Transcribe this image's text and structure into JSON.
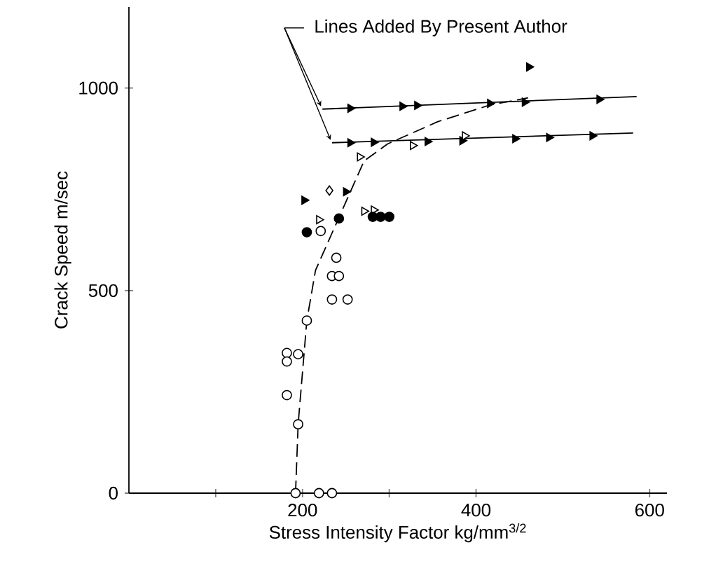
{
  "chart_data": {
    "type": "scatter",
    "xlabel": "Stress Intensity Factor kg/mm$^{3/2}$",
    "ylabel": "Crack Speed m/sec",
    "annotations": [
      "Lines Added By Present Author"
    ],
    "xlim": [
      0,
      620
    ],
    "ylim": [
      0,
      1200
    ],
    "xticks": [
      {
        "value": 100,
        "label": null
      },
      200,
      {
        "value": 300,
        "label": null
      },
      400,
      600
    ],
    "yticks": [
      0,
      500,
      1000
    ],
    "grid": false,
    "series": [
      {
        "type": "line",
        "color": "#000000",
        "line_style": "solid",
        "marker": "none",
        "x": [
          223,
          585
        ],
        "values": [
          948,
          979
        ]
      },
      {
        "type": "line",
        "color": "#000000",
        "line_style": "solid",
        "marker": "none",
        "x": [
          234,
          581
        ],
        "values": [
          865,
          889
        ]
      },
      {
        "type": "line",
        "color": "#000000",
        "line_style": "dashed",
        "marker": "none",
        "x": [
          192,
          195,
          205,
          215,
          271,
          298,
          356,
          416,
          460
        ],
        "values": [
          0,
          170,
          426,
          550,
          820,
          862,
          917,
          958,
          976
        ]
      },
      {
        "color": "#000000",
        "marker": "triangle",
        "x": [
          255,
          315,
          332,
          416,
          456,
          542,
          461,
          255,
          282,
          344,
          384,
          445,
          484,
          534,
          250,
          202
        ],
        "values": [
          950,
          955,
          957,
          962,
          965,
          972,
          1052,
          865,
          866,
          868,
          870,
          875,
          878,
          882,
          744,
          723
        ]
      },
      {
        "color": "#ffffff",
        "marker": "triangle",
        "x": [
          327,
          387,
          266,
          219,
          271,
          282
        ],
        "values": [
          858,
          882,
          830,
          675,
          696,
          699
        ]
      },
      {
        "color": "#ffffff",
        "marker": "diamond",
        "x": [
          231
        ],
        "values": [
          747
        ]
      },
      {
        "color": "#000000",
        "marker": "circle",
        "x": [
          205,
          242,
          281,
          290,
          300
        ],
        "values": [
          644,
          678,
          682,
          682,
          682
        ]
      },
      {
        "color": "#ffffff",
        "marker": "circle",
        "x": [
          221,
          239,
          234,
          242,
          234,
          252,
          205,
          182,
          182,
          195,
          182,
          195,
          192,
          219,
          234
        ],
        "values": [
          647,
          581,
          536,
          536,
          478,
          478,
          426,
          346,
          325,
          343,
          242,
          170,
          0,
          0,
          0
        ]
      }
    ]
  }
}
